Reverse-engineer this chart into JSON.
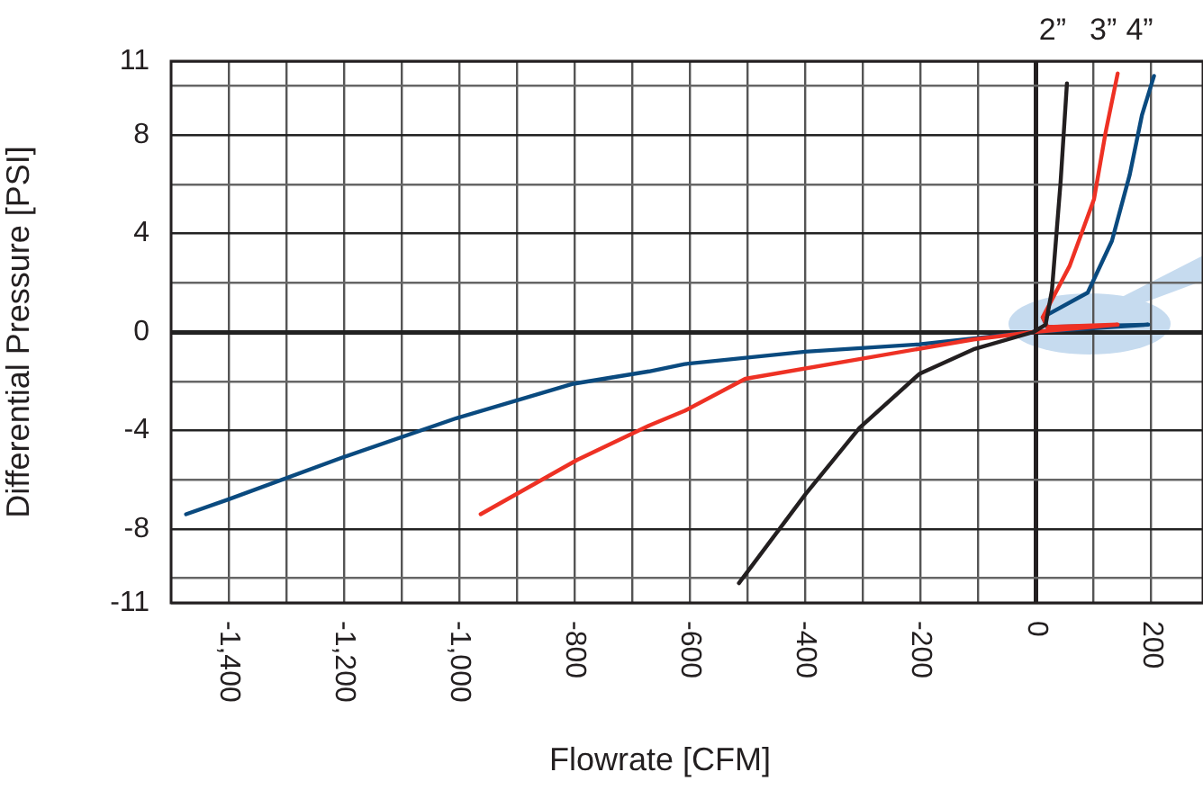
{
  "chart_data": {
    "type": "line",
    "xlabel": "Flowrate [CFM]",
    "ylabel": "Differential Pressure [PSI]",
    "xlim": [
      -1500,
      290
    ],
    "ylim": [
      -11,
      11
    ],
    "xticks": [
      {
        "value": -1400,
        "label": "-1,400"
      },
      {
        "value": -1300,
        "label": null
      },
      {
        "value": -1200,
        "label": "-1,200"
      },
      {
        "value": -1100,
        "label": null
      },
      {
        "value": -1000,
        "label": "-1,000"
      },
      {
        "value": -900,
        "label": null
      },
      -800,
      {
        "value": -700,
        "label": null
      },
      -600,
      {
        "value": -500,
        "label": null
      },
      -400,
      {
        "value": -300,
        "label": null
      },
      -200,
      {
        "value": -100,
        "label": null
      },
      0,
      {
        "value": 100,
        "label": null
      },
      200
    ],
    "yticks": [
      11,
      {
        "value": 10,
        "label": null
      },
      8,
      {
        "value": 6,
        "label": null
      },
      4,
      {
        "value": 2,
        "label": null
      },
      0,
      {
        "value": -2,
        "label": null
      },
      -4,
      {
        "value": -6,
        "label": null
      },
      -8,
      {
        "value": -10,
        "label": null
      },
      -11
    ],
    "grid": true,
    "legend": false,
    "marker": "none",
    "line_style": "solid",
    "series": [
      {
        "name": "2”",
        "color": "#231f20",
        "x": [
          -515,
          -400,
          -306,
          -202,
          -108,
          -4,
          17,
          28,
          43,
          54
        ],
        "values": [
          -10.2,
          -6.6,
          -3.9,
          -1.7,
          -0.7,
          0,
          0.3,
          1.7,
          6.1,
          10.1
        ]
      },
      {
        "name": "3”",
        "color": "#ee3124",
        "x": [
          -963,
          -796,
          -671,
          -609,
          -504,
          -306,
          -108,
          -4,
          142,
          20,
          12,
          59,
          101,
          121,
          142
        ],
        "values": [
          -7.4,
          -5.2,
          -3.8,
          -3.2,
          -1.9,
          -1.1,
          -0.3,
          0,
          0.3,
          0.2,
          0.6,
          2.7,
          5.4,
          8.1,
          10.5
        ]
      },
      {
        "name": "4”",
        "color": "#0a4a7f",
        "x": [
          -1474,
          -1401,
          -1203,
          -1005,
          -802,
          -671,
          -609,
          -400,
          -202,
          -4,
          195,
          20,
          12,
          90,
          132,
          163,
          184,
          205
        ],
        "values": [
          -7.4,
          -6.8,
          -5.1,
          -3.5,
          -2.1,
          -1.6,
          -1.3,
          -0.8,
          -0.5,
          0,
          0.3,
          0.2,
          0.6,
          1.6,
          3.7,
          6.4,
          8.8,
          10.4
        ]
      }
    ]
  }
}
